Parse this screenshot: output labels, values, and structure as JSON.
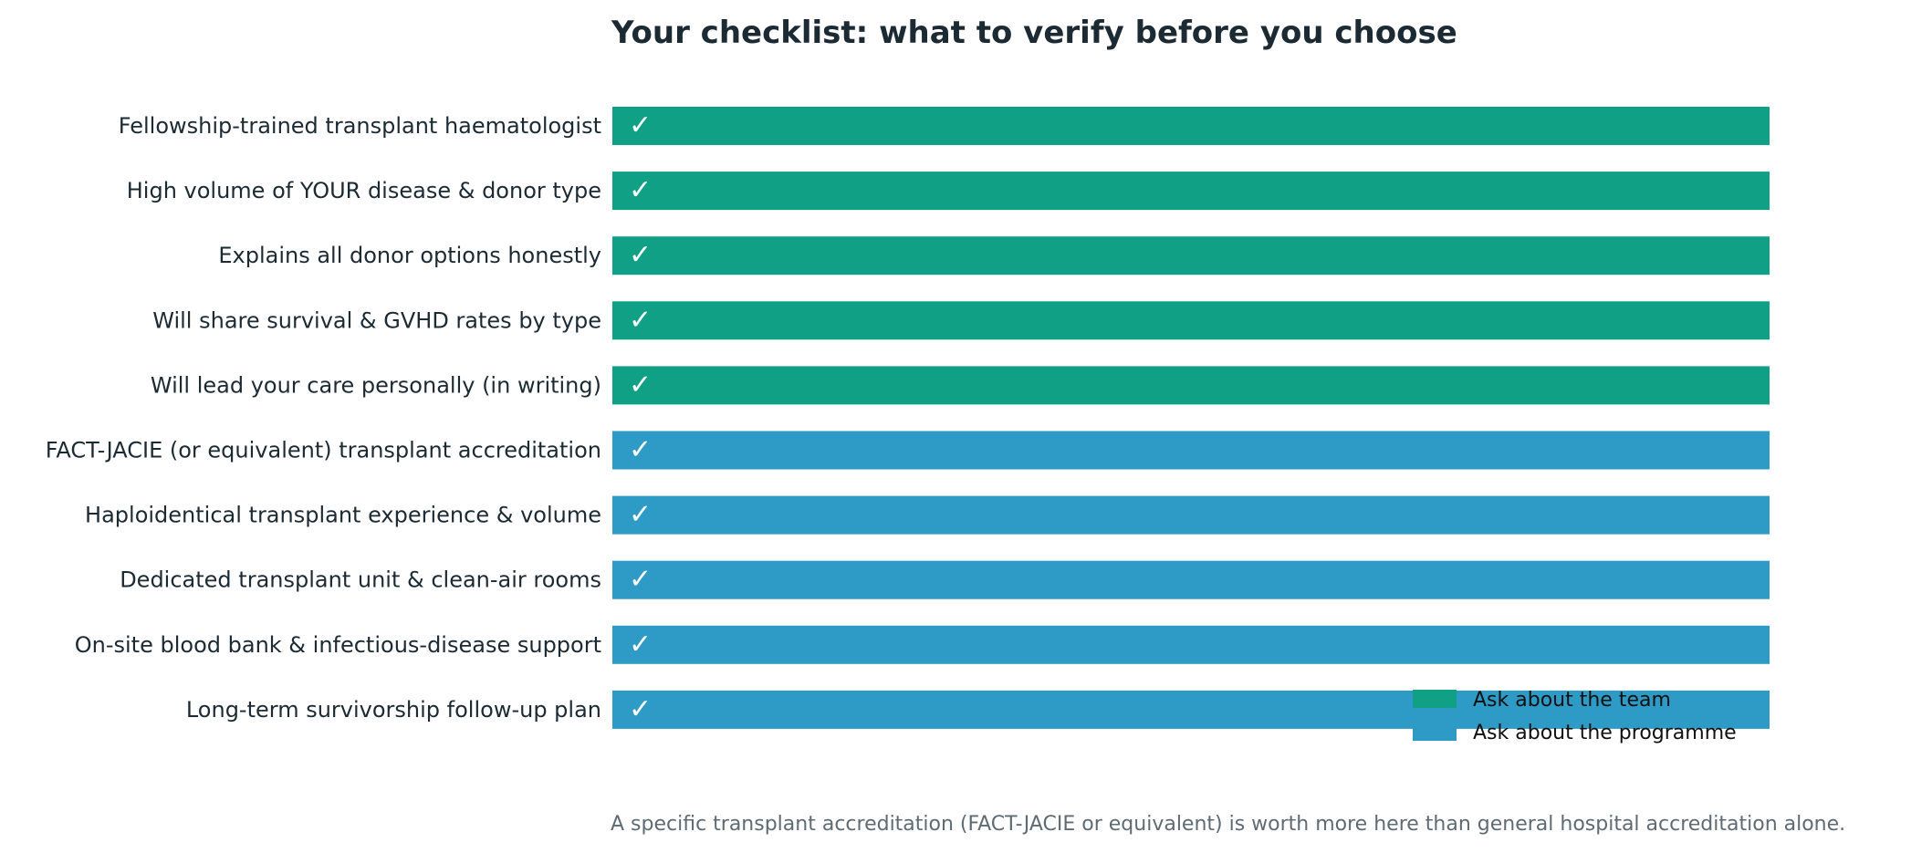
{
  "colors": {
    "team": "#0fa085",
    "programme": "#2e9ac6",
    "text": "#1b2a33",
    "footnote": "#5f6b73"
  },
  "chart_data": {
    "type": "bar",
    "orientation": "horizontal",
    "title": "Your checklist: what to verify before you choose",
    "xlabel": "",
    "ylabel": "",
    "grid": false,
    "check_mark": "✓",
    "categories": [
      "Fellowship-trained transplant haematologist",
      "High volume of YOUR disease & donor type",
      "Explains all donor options honestly",
      "Will share survival & GVHD rates by type",
      "Will lead your care personally (in writing)",
      "FACT-JACIE (or equivalent) transplant accreditation",
      "Haploidentical transplant experience & volume",
      "Dedicated transplant unit & clean-air rooms",
      "On-site blood bank & infectious-disease support",
      "Long-term survivorship follow-up plan"
    ],
    "values": [
      1,
      1,
      1,
      1,
      1,
      1,
      1,
      1,
      1,
      1
    ],
    "groups": [
      "team",
      "team",
      "team",
      "team",
      "team",
      "programme",
      "programme",
      "programme",
      "programme",
      "programme"
    ],
    "xlim": [
      0,
      1
    ],
    "legend": {
      "placement": "lower-right",
      "entries": [
        {
          "key": "team",
          "label": "Ask about the team"
        },
        {
          "key": "programme",
          "label": "Ask about the programme"
        }
      ]
    },
    "footnote": "A specific transplant accreditation (FACT-JACIE or equivalent) is worth more here than general hospital accreditation alone."
  }
}
